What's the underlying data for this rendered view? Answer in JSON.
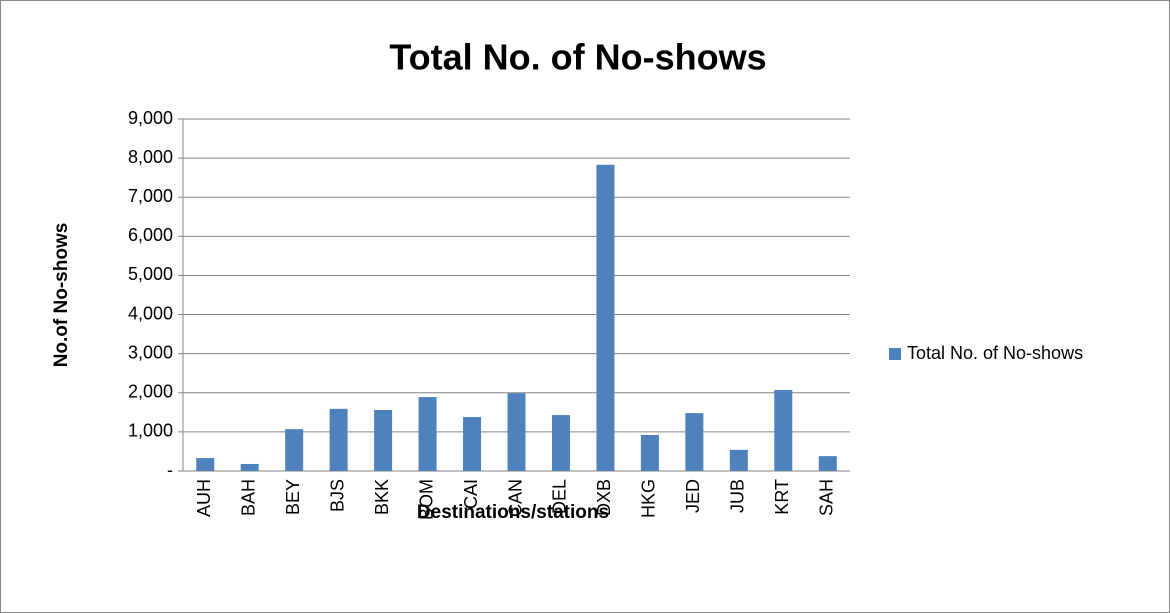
{
  "chart_data": {
    "type": "bar",
    "title": "Total No. of No-shows",
    "x_label": "Destinations/stations",
    "y_label": "No.of No-shows",
    "categories": [
      "AUH",
      "BAH",
      "BEY",
      "BJS",
      "BKK",
      "BOM",
      "CAI",
      "CAN",
      "DEL",
      "DXB",
      "HKG",
      "JED",
      "JUB",
      "KRT",
      "SAH"
    ],
    "series": [
      {
        "name": "Total No. of No-shows",
        "color": "#4f81bd",
        "values": [
          330,
          180,
          1070,
          1590,
          1560,
          1890,
          1380,
          1990,
          1430,
          7830,
          920,
          1480,
          540,
          2070,
          380
        ]
      }
    ],
    "ylim": [
      0,
      9000
    ],
    "yticks": [
      {
        "value": 0,
        "label": "-"
      },
      {
        "value": 1000,
        "label": "1,000"
      },
      {
        "value": 2000,
        "label": "2,000"
      },
      {
        "value": 3000,
        "label": "3,000"
      },
      {
        "value": 4000,
        "label": "4,000"
      },
      {
        "value": 5000,
        "label": "5,000"
      },
      {
        "value": 6000,
        "label": "6,000"
      },
      {
        "value": 7000,
        "label": "7,000"
      },
      {
        "value": 8000,
        "label": "8,000"
      },
      {
        "value": 9000,
        "label": "9,000"
      }
    ],
    "grid": true,
    "legend": "right"
  }
}
